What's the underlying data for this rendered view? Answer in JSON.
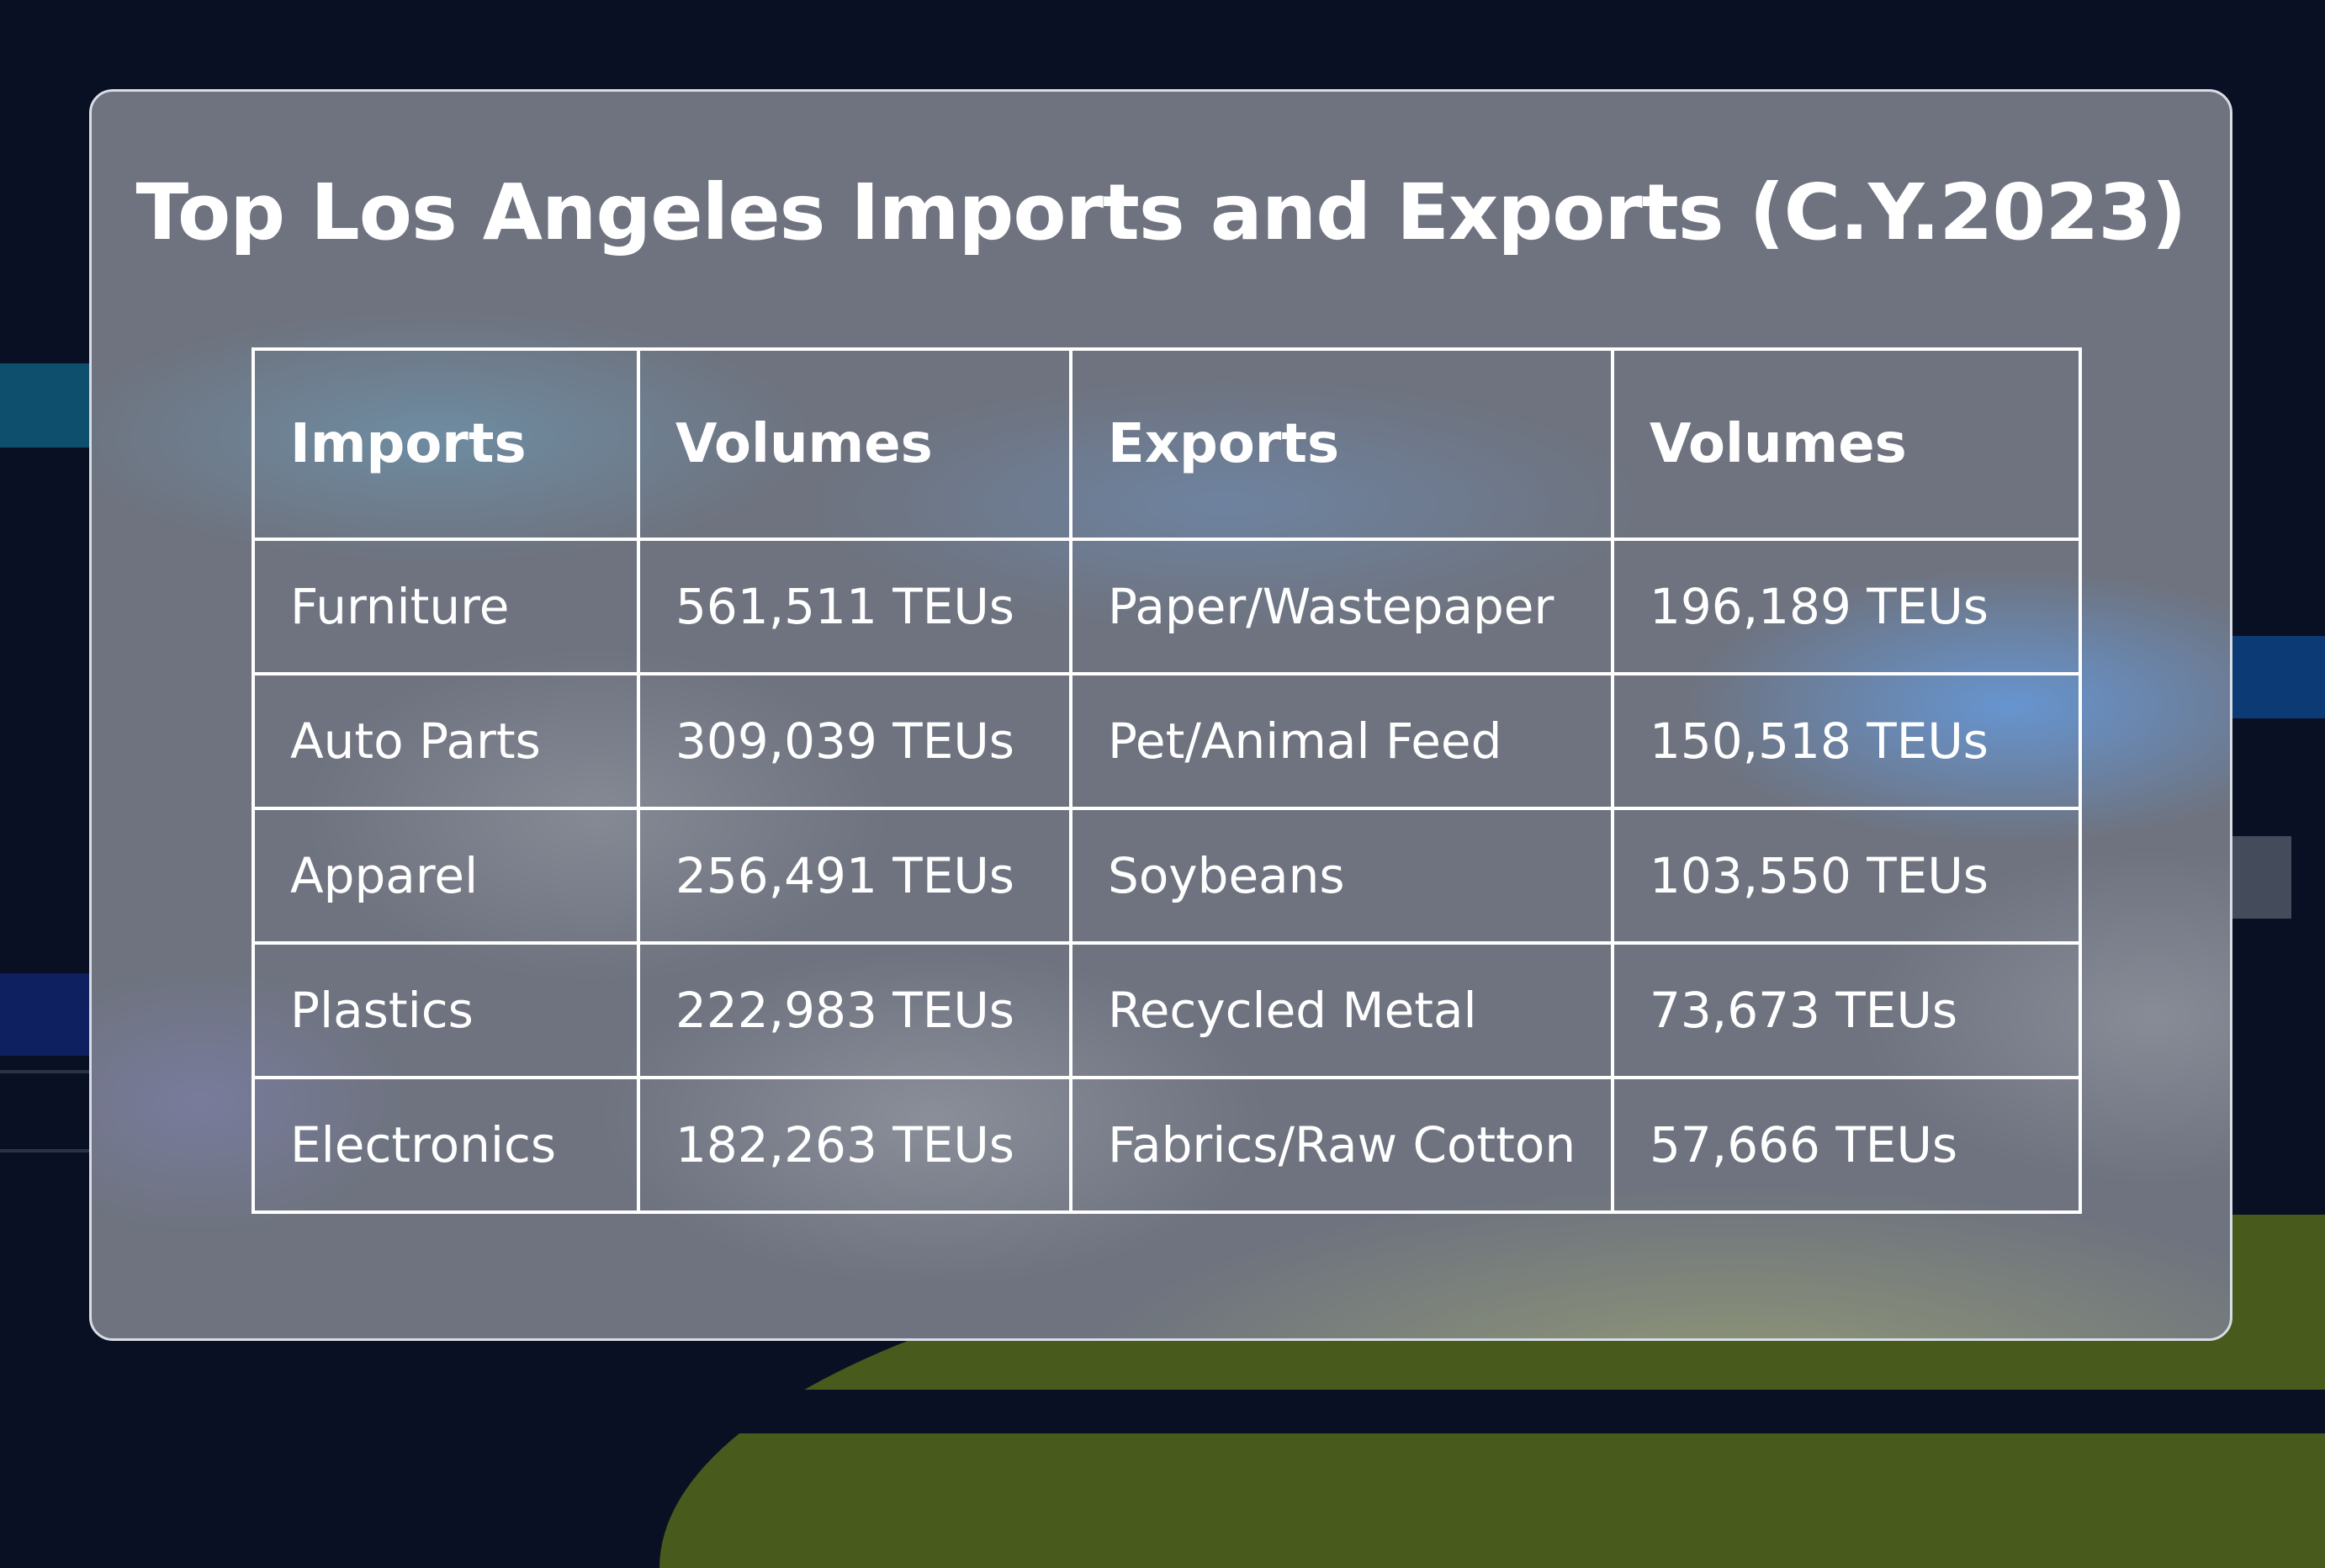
{
  "title": "Top Los Angeles Imports and Exports (C.Y.2023)",
  "table": {
    "headers": [
      "Imports",
      "Volumes",
      "Exports",
      "Volumes"
    ],
    "rows": [
      [
        "Furniture",
        "561,511 TEUs",
        "Paper/Wastepaper",
        "196,189 TEUs"
      ],
      [
        "Auto Parts",
        "309,039 TEUs",
        "Pet/Animal Feed",
        "150,518 TEUs"
      ],
      [
        "Apparel",
        "256,491 TEUs",
        "Soybeans",
        "103,550 TEUs"
      ],
      [
        "Plastics",
        "222,983 TEUs",
        "Recycled Metal",
        "73,673 TEUs"
      ],
      [
        "Electronics",
        "182,263 TEUs",
        "Fabrics/Raw Cotton",
        "57,666 TEUs"
      ]
    ]
  },
  "colors": {
    "background": "#0a1024",
    "card": "#6e737f",
    "text": "#ffffff",
    "border": "#ffffff"
  }
}
